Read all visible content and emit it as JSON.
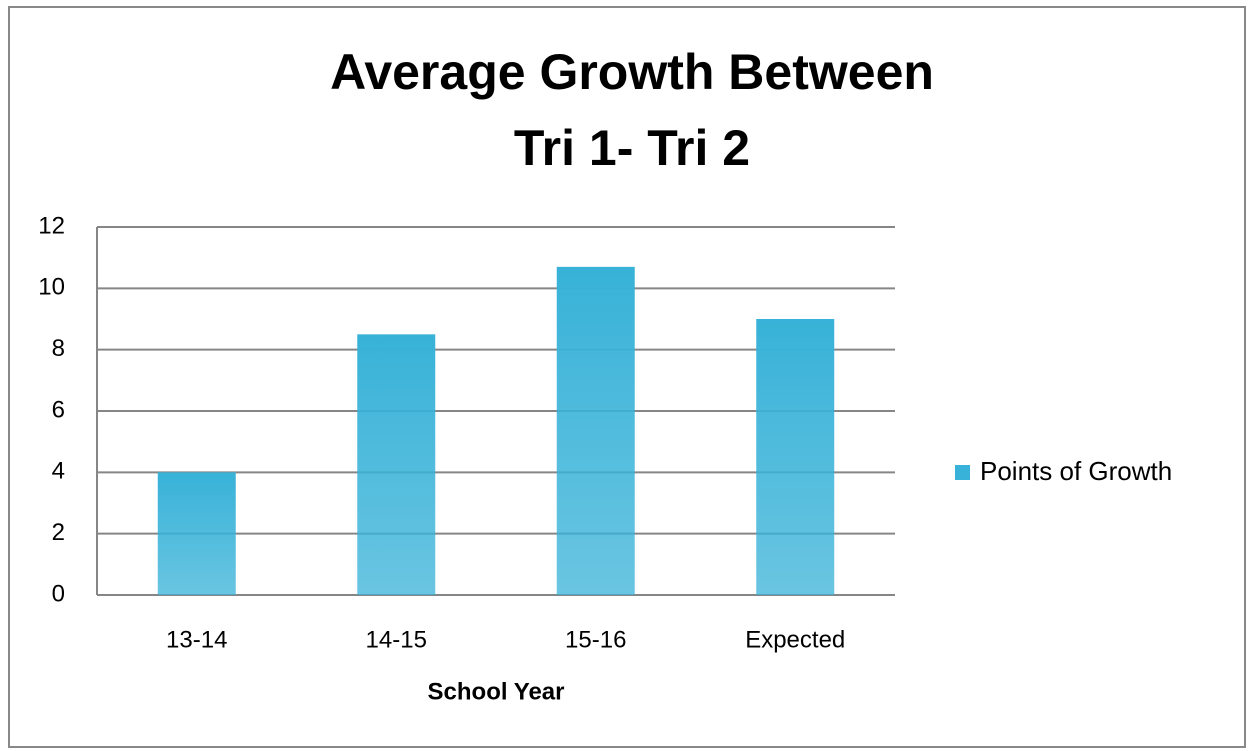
{
  "chart_data": {
    "type": "bar",
    "title": [
      "Average Growth Between",
      "Tri 1- Tri 2"
    ],
    "x_label": "School Year",
    "categories": [
      "13-14",
      "14-15",
      "15-16",
      "Expected"
    ],
    "series": [
      {
        "name": "Points of Growth",
        "color": "#38b2d8",
        "values": [
          4,
          8.5,
          10.7,
          9
        ]
      }
    ],
    "ylim": [
      0,
      12
    ],
    "yticks": [
      0,
      2,
      4,
      6,
      8,
      10,
      12
    ],
    "grid": true,
    "legend": "right"
  }
}
